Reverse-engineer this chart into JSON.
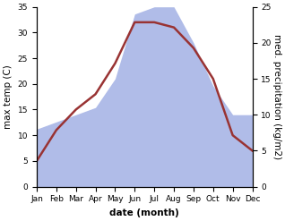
{
  "months": [
    "Jan",
    "Feb",
    "Mar",
    "Apr",
    "May",
    "Jun",
    "Jul",
    "Aug",
    "Sep",
    "Oct",
    "Nov",
    "Dec"
  ],
  "temperature": [
    5,
    11,
    15,
    18,
    24,
    32,
    32,
    31,
    27,
    21,
    10,
    7
  ],
  "precipitation": [
    8,
    9,
    10,
    11,
    15,
    24,
    25,
    25,
    20,
    14,
    10,
    10
  ],
  "temp_color": "#993333",
  "precip_fill_color": "#b0bce8",
  "temp_ylim": [
    0,
    35
  ],
  "precip_ylim": [
    0,
    25
  ],
  "temp_yticks": [
    0,
    5,
    10,
    15,
    20,
    25,
    30,
    35
  ],
  "precip_yticks": [
    0,
    5,
    10,
    15,
    20,
    25
  ],
  "ylabel_left": "max temp (C)",
  "ylabel_right": "med. precipitation (kg/m2)",
  "xlabel": "date (month)",
  "label_fontsize": 7.5,
  "tick_fontsize": 6.5,
  "linewidth": 1.8
}
